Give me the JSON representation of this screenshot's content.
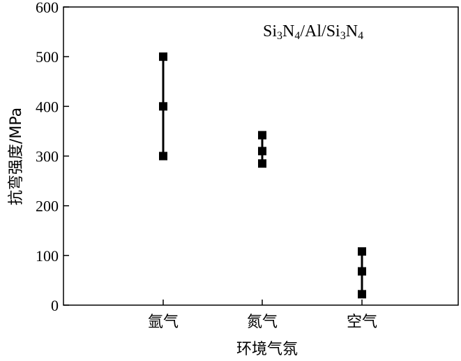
{
  "chart_data": {
    "type": "scatter",
    "categories": [
      "氩气",
      "氮气",
      "空气"
    ],
    "series": [
      {
        "points": [
          {
            "category": "氩气",
            "values": [
              300,
              400,
              500
            ]
          },
          {
            "category": "氮气",
            "values": [
              285,
              310,
              342
            ]
          },
          {
            "category": "空气",
            "values": [
              22,
              68,
              108
            ]
          }
        ]
      }
    ],
    "error_bars": [
      {
        "category": "氩气",
        "min": 300,
        "max": 500
      },
      {
        "category": "氮气",
        "min": 285,
        "max": 342
      },
      {
        "category": "空气",
        "min": 22,
        "max": 108
      }
    ],
    "ylabel": "抗弯强度/MPa",
    "xlabel": "环境气氛",
    "ylim": [
      0,
      600
    ],
    "yticks": [
      0,
      100,
      200,
      300,
      400,
      500,
      600
    ],
    "annotation": {
      "parts": [
        {
          "t": "Si",
          "sub": false
        },
        {
          "t": "3",
          "sub": true
        },
        {
          "t": "N",
          "sub": false
        },
        {
          "t": "4",
          "sub": true
        },
        {
          "t": "/Al/Si",
          "sub": false
        },
        {
          "t": "3",
          "sub": true
        },
        {
          "t": "N",
          "sub": false
        },
        {
          "t": "4",
          "sub": true
        }
      ],
      "placement": "top-right"
    },
    "grid": false
  }
}
